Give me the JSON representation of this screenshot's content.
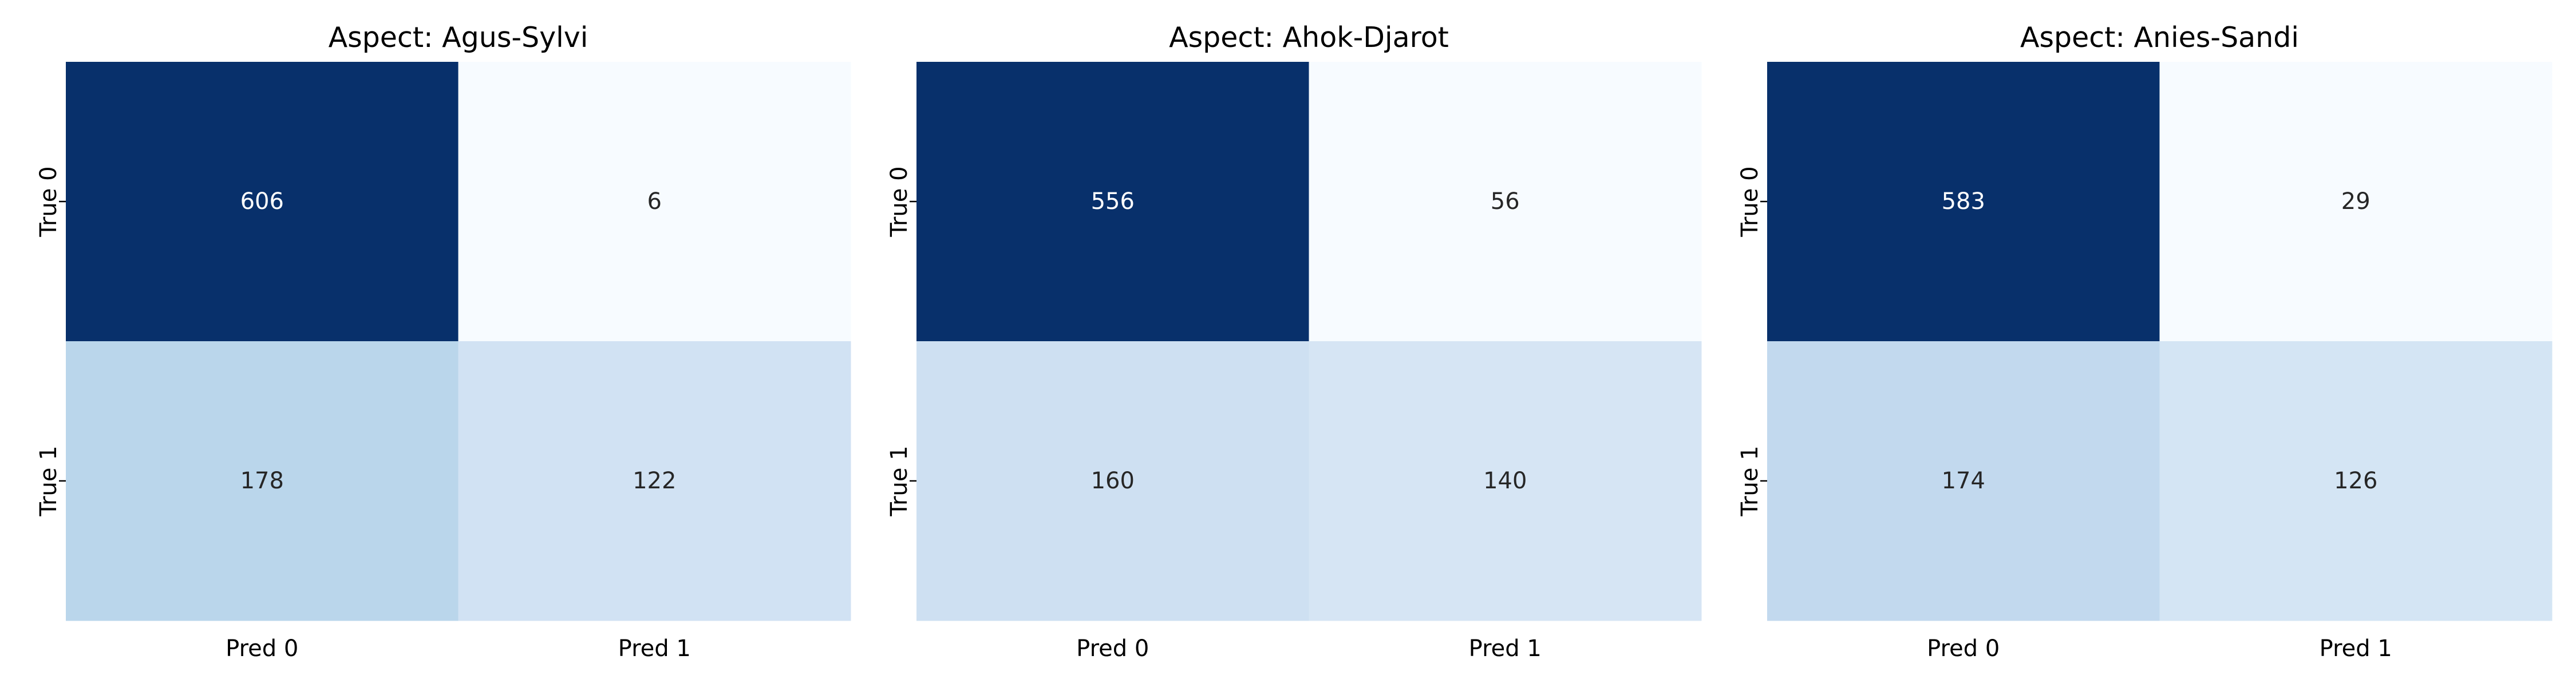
{
  "chart_data": [
    {
      "type": "heatmap",
      "title": "Aspect: Agus-Sylvi",
      "x_categories": [
        "Pred 0",
        "Pred 1"
      ],
      "y_categories": [
        "True 0",
        "True 1"
      ],
      "values": [
        [
          606,
          6
        ],
        [
          178,
          122
        ]
      ],
      "colorbar": false,
      "colormap": "Blues"
    },
    {
      "type": "heatmap",
      "title": "Aspect: Ahok-Djarot",
      "x_categories": [
        "Pred 0",
        "Pred 1"
      ],
      "y_categories": [
        "True 0",
        "True 1"
      ],
      "values": [
        [
          556,
          56
        ],
        [
          160,
          140
        ]
      ],
      "colorbar": false,
      "colormap": "Blues"
    },
    {
      "type": "heatmap",
      "title": "Aspect: Anies-Sandi",
      "x_categories": [
        "Pred 0",
        "Pred 1"
      ],
      "y_categories": [
        "True 0",
        "True 1"
      ],
      "values": [
        [
          583,
          29
        ],
        [
          174,
          126
        ]
      ],
      "colorbar": false,
      "colormap": "Blues"
    }
  ]
}
